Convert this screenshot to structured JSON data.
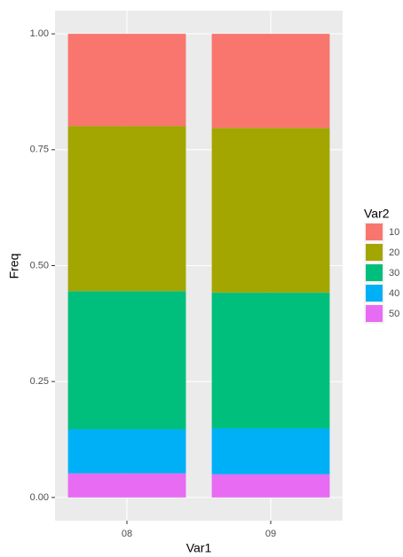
{
  "chart_data": {
    "type": "stacked-bar",
    "x_label": "Var1",
    "y_label": "Freq",
    "legend_title": "Var2",
    "categories": [
      "08",
      "09"
    ],
    "series": [
      {
        "name": "10",
        "color": "#F8766D",
        "values": [
          0.199,
          0.203
        ]
      },
      {
        "name": "20",
        "color": "#A3A500",
        "values": [
          0.356,
          0.355
        ]
      },
      {
        "name": "30",
        "color": "#00BF7D",
        "values": [
          0.298,
          0.293
        ]
      },
      {
        "name": "40",
        "color": "#00B0F6",
        "values": [
          0.095,
          0.099
        ]
      },
      {
        "name": "50",
        "color": "#E76BF3",
        "values": [
          0.052,
          0.05
        ]
      }
    ],
    "ylim": [
      -0.05,
      1.05
    ],
    "yticks": [
      {
        "value": 0,
        "label": "0.00"
      },
      {
        "value": 0.25,
        "label": "0.25"
      },
      {
        "value": 0.5,
        "label": "0.50"
      },
      {
        "value": 0.75,
        "label": "0.75"
      },
      {
        "value": 1,
        "label": "1.00"
      }
    ],
    "grid": true,
    "legend": "right"
  }
}
